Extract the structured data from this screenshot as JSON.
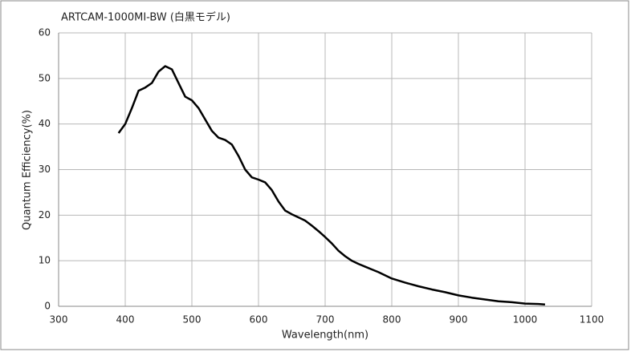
{
  "chart_data": {
    "type": "line",
    "title": "ARTCAM-1000MI-BW (白黒モデル)",
    "x_label": "Wavelength(nm)",
    "y_label": "Quantum  Efficiency(%)",
    "x": [
      390,
      400,
      410,
      420,
      430,
      440,
      450,
      460,
      470,
      480,
      490,
      500,
      510,
      520,
      530,
      540,
      550,
      560,
      570,
      580,
      590,
      600,
      610,
      620,
      630,
      640,
      650,
      660,
      670,
      680,
      690,
      700,
      710,
      720,
      730,
      740,
      750,
      760,
      770,
      780,
      790,
      800,
      820,
      840,
      860,
      880,
      900,
      920,
      940,
      960,
      980,
      1000,
      1020,
      1030
    ],
    "series": [
      {
        "name": "ARTCAM-1000MI-BW",
        "color": "#000000",
        "values": [
          38,
          40,
          43.5,
          47.3,
          48,
          49,
          51.5,
          52.7,
          52,
          49,
          46,
          45.2,
          43.5,
          41,
          38.5,
          37,
          36.5,
          35.5,
          33,
          30,
          28.3,
          27.8,
          27.2,
          25.5,
          23,
          21,
          20.2,
          19.5,
          18.8,
          17.7,
          16.5,
          15.2,
          13.8,
          12.2,
          11,
          10,
          9.3,
          8.7,
          8.1,
          7.5,
          6.8,
          6.1,
          5.2,
          4.4,
          3.7,
          3.1,
          2.4,
          1.9,
          1.5,
          1.1,
          0.9,
          0.6,
          0.5,
          0.4
        ]
      }
    ],
    "xlim": [
      300,
      1100
    ],
    "xticks": [
      300,
      400,
      500,
      600,
      700,
      800,
      900,
      1000,
      1100
    ],
    "ylim": [
      0,
      60
    ],
    "yticks": [
      0,
      10,
      20,
      30,
      40,
      50,
      60
    ],
    "grid": true
  }
}
